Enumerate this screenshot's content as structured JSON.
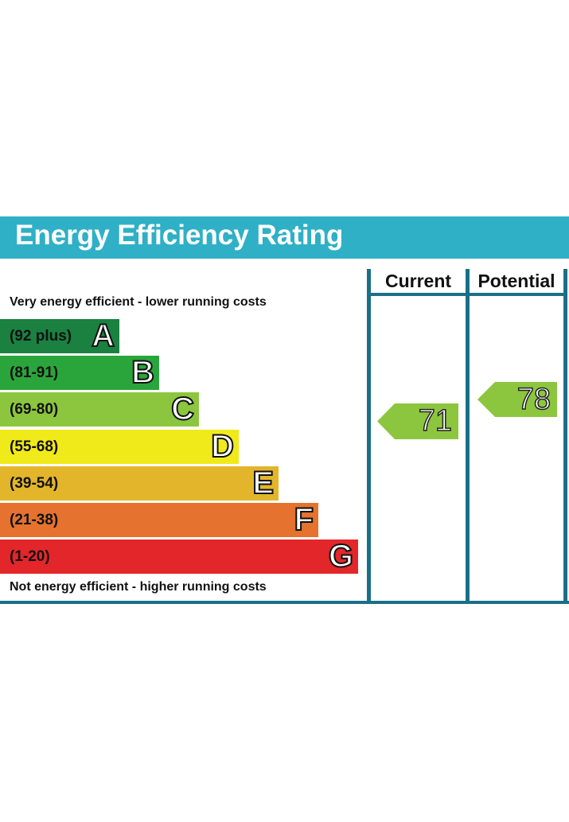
{
  "title": "Energy Efficiency Rating",
  "top_caption": "Very energy efficient - lower running costs",
  "bottom_caption": "Not energy efficient - higher running costs",
  "columns": {
    "current": "Current",
    "potential": "Potential"
  },
  "colors": {
    "header": "#2fb0c6",
    "frame": "#1a6f86"
  },
  "chart_data": {
    "type": "bar",
    "title": "Energy Efficiency Rating",
    "categories": [
      "A",
      "B",
      "C",
      "D",
      "E",
      "F",
      "G"
    ],
    "bands": [
      {
        "letter": "A",
        "range": "(92 plus)",
        "color": "#1a8140"
      },
      {
        "letter": "B",
        "range": "(81-91)",
        "color": "#2aa53b"
      },
      {
        "letter": "C",
        "range": "(69-80)",
        "color": "#8cc63f"
      },
      {
        "letter": "D",
        "range": "(55-68)",
        "color": "#f1ea1a"
      },
      {
        "letter": "E",
        "range": "(39-54)",
        "color": "#e3b52a"
      },
      {
        "letter": "F",
        "range": "(21-38)",
        "color": "#e5722e"
      },
      {
        "letter": "G",
        "range": "(1-20)",
        "color": "#e3262a"
      }
    ],
    "current": {
      "value": "71",
      "band": "C",
      "color": "#8cc63f"
    },
    "potential": {
      "value": "78",
      "band": "C",
      "color": "#8cc63f"
    }
  }
}
